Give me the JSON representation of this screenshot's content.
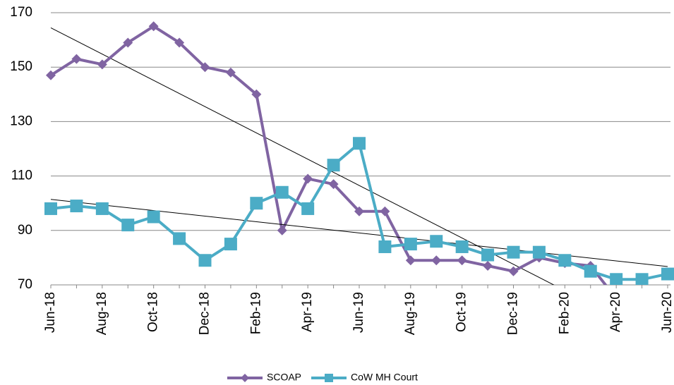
{
  "chart_data": {
    "type": "line",
    "categories": [
      "Jun-18",
      null,
      "Aug-18",
      null,
      "Oct-18",
      null,
      "Dec-18",
      null,
      "Feb-19",
      null,
      "Apr-19",
      null,
      "Jun-19",
      null,
      "Aug-19",
      null,
      "Oct-19",
      null,
      "Dec-19",
      null,
      "Feb-20",
      null,
      "Apr-20",
      null,
      "Jun-20"
    ],
    "series": [
      {
        "name": "SCOAP",
        "color": "#8064a2",
        "marker": "diamond",
        "trendline": true,
        "values": [
          147,
          153,
          151,
          159,
          165,
          159,
          150,
          148,
          140,
          90,
          109,
          107,
          97,
          97,
          79,
          79,
          79,
          77,
          75,
          80,
          78,
          77,
          65,
          null,
          null
        ]
      },
      {
        "name": "CoW MH Court",
        "color": "#4bacc6",
        "marker": "square",
        "trendline": true,
        "values": [
          98,
          99,
          98,
          92,
          95,
          87,
          79,
          85,
          100,
          104,
          98,
          114,
          122,
          84,
          85,
          86,
          84,
          81,
          82,
          82,
          79,
          75,
          72,
          72,
          74
        ]
      }
    ],
    "ylim": [
      70,
      170
    ],
    "yticks": [
      70,
      90,
      110,
      130,
      150,
      170
    ],
    "grid": true,
    "legend": "bottom"
  }
}
